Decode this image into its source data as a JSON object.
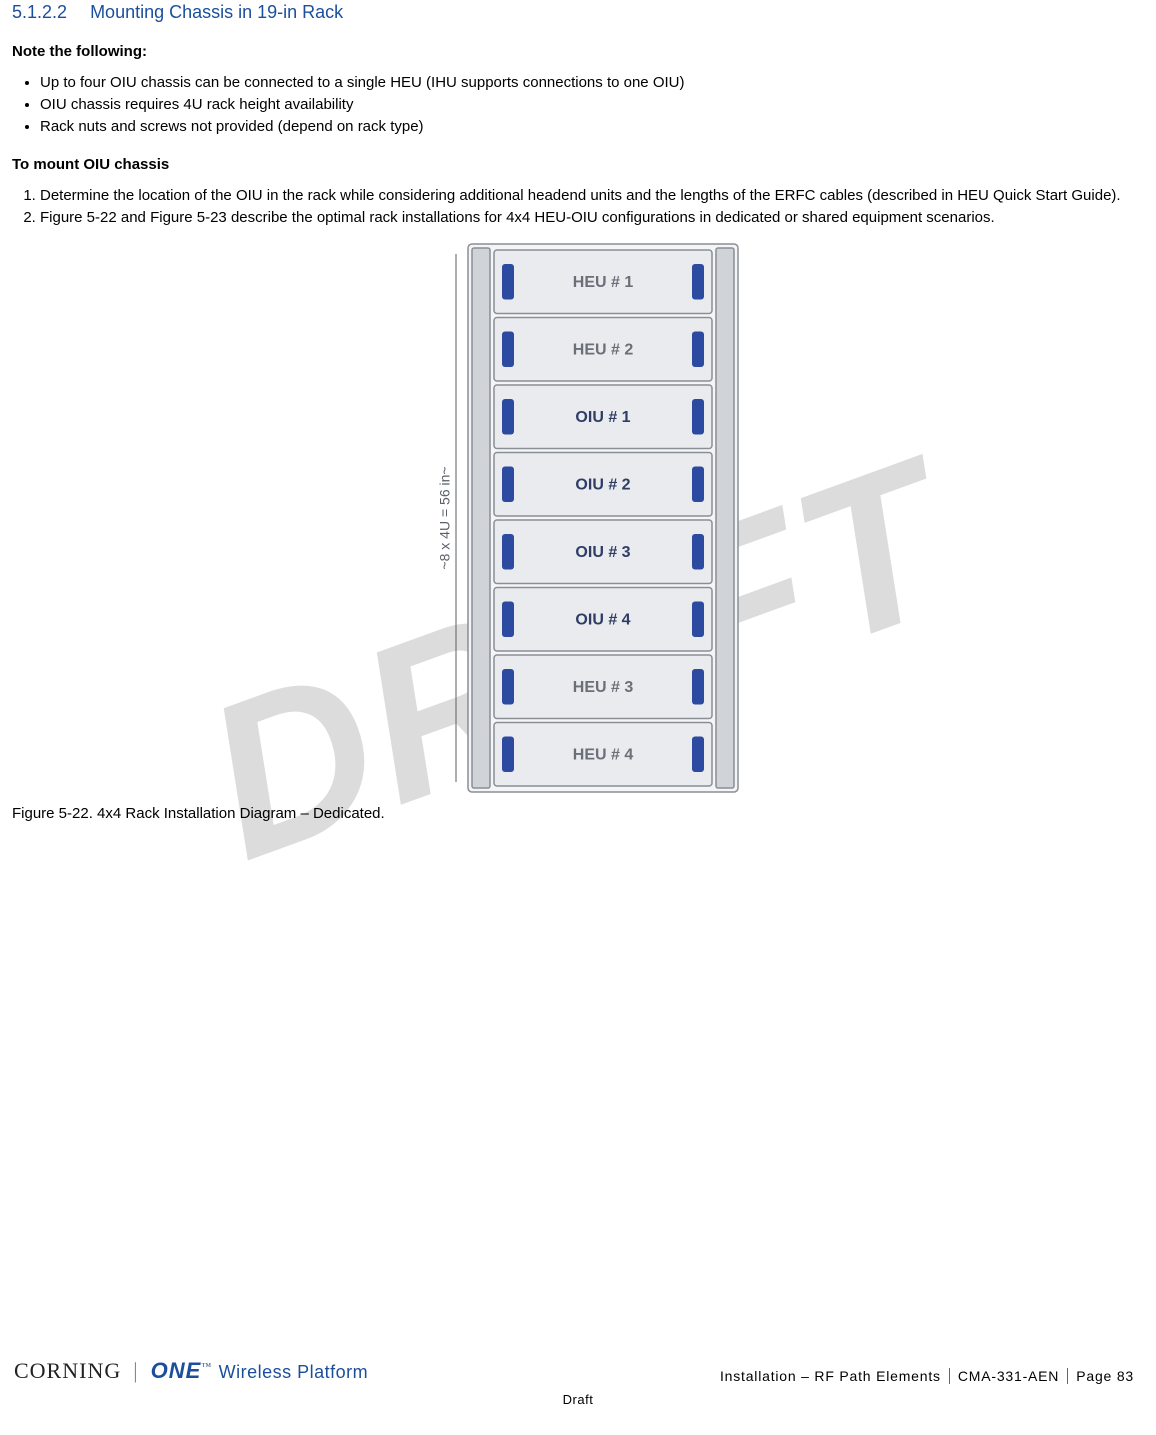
{
  "heading": {
    "number": "5.1.2.2",
    "title": "Mounting Chassis in 19-in Rack"
  },
  "note_label": "Note the following:",
  "notes": [
    "Up to four OIU chassis can be connected to a single HEU (IHU supports connections to one OIU)",
    "OIU chassis requires 4U rack height availability",
    "Rack nuts and screws not provided (depend on rack type)"
  ],
  "procedure_label": "To mount OIU chassis",
  "steps": [
    "Determine the location of the OIU in the rack while considering additional headend units and the lengths of the ERFC cables (described in HEU Quick Start Guide).",
    "Figure 5-22 and Figure 5-23 describe the optimal rack installations for 4x4 HEU-OIU configurations in dedicated or shared equipment scenarios."
  ],
  "figure": {
    "caption": "Figure 5-22. 4x4 Rack Installation Diagram – Dedicated.",
    "side_label": "~8 x 4U = 56 in~",
    "units": [
      {
        "label": "HEU # 1",
        "color": "#6a6f78"
      },
      {
        "label": "HEU # 2",
        "color": "#6a6f78"
      },
      {
        "label": "OIU # 1",
        "color": "#2f3d66"
      },
      {
        "label": "OIU # 2",
        "color": "#2f3d66"
      },
      {
        "label": "OIU # 3",
        "color": "#2f3d66"
      },
      {
        "label": "OIU # 4",
        "color": "#2f3d66"
      },
      {
        "label": "HEU # 3",
        "color": "#6a6f78"
      },
      {
        "label": "HEU # 4",
        "color": "#6a6f78"
      }
    ],
    "style": {
      "frame_stroke": "#8a8f96",
      "unit_fill": "#e9ebee",
      "unit_stroke": "#8a8f96",
      "handle_fill": "#2b4aa0",
      "label_fontsize": 16,
      "side_label_color": "#5a5f66"
    }
  },
  "watermark": "DRAFT",
  "footer": {
    "brand_main": "CORNING",
    "brand_one": "ONE",
    "brand_tagline": "Wireless Platform",
    "section": "Installation – RF Path Elements",
    "docid": "CMA-331-AEN",
    "page": "Page 83",
    "status": "Draft"
  }
}
